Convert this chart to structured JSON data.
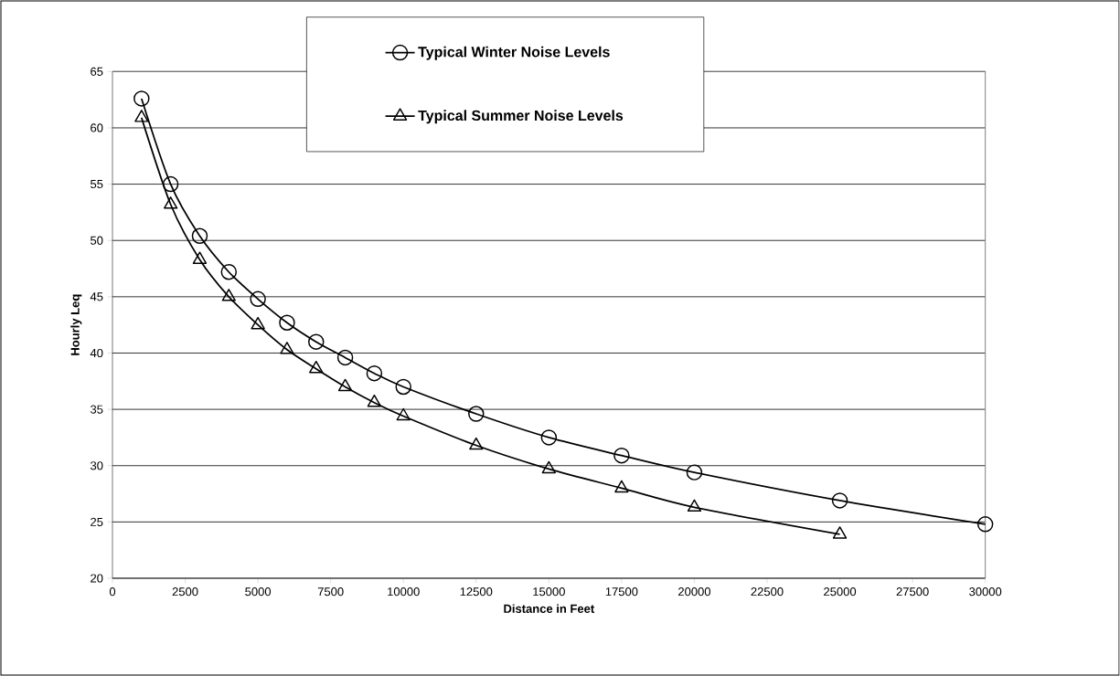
{
  "chart_data": {
    "type": "line",
    "xlabel": "Distance in Feet",
    "ylabel": "Hourly Leq",
    "xlim": [
      0,
      30000
    ],
    "xticks": [
      0,
      2500,
      5000,
      7500,
      10000,
      12500,
      15000,
      17500,
      20000,
      22500,
      25000,
      27500,
      30000
    ],
    "ylim": [
      20,
      65
    ],
    "yticks": [
      20,
      25,
      30,
      35,
      40,
      45,
      50,
      55,
      60,
      65
    ],
    "grid": "y",
    "legend": "top",
    "line_style": "solid",
    "series": [
      {
        "name": "Typical Winter Noise Levels",
        "color": "#000000",
        "marker": "circle",
        "x": [
          1000,
          2000,
          3000,
          4000,
          5000,
          6000,
          7000,
          8000,
          9000,
          10000,
          12500,
          15000,
          17500,
          20000,
          25000,
          30000
        ],
        "values": [
          62.6,
          55.0,
          50.4,
          47.2,
          44.8,
          42.7,
          41.0,
          39.6,
          38.2,
          37.0,
          34.6,
          32.5,
          30.9,
          29.4,
          26.9,
          24.8
        ]
      },
      {
        "name": "Typical Summer Noise Levels",
        "color": "#000000",
        "marker": "triangle",
        "x": [
          1000,
          2000,
          3000,
          4000,
          5000,
          6000,
          7000,
          8000,
          9000,
          10000,
          12500,
          15000,
          17500,
          20000,
          25000
        ],
        "values": [
          60.9,
          53.2,
          48.3,
          45.0,
          42.5,
          40.3,
          38.6,
          37.0,
          35.6,
          34.4,
          31.8,
          29.7,
          28.0,
          26.3,
          23.9
        ]
      }
    ]
  }
}
